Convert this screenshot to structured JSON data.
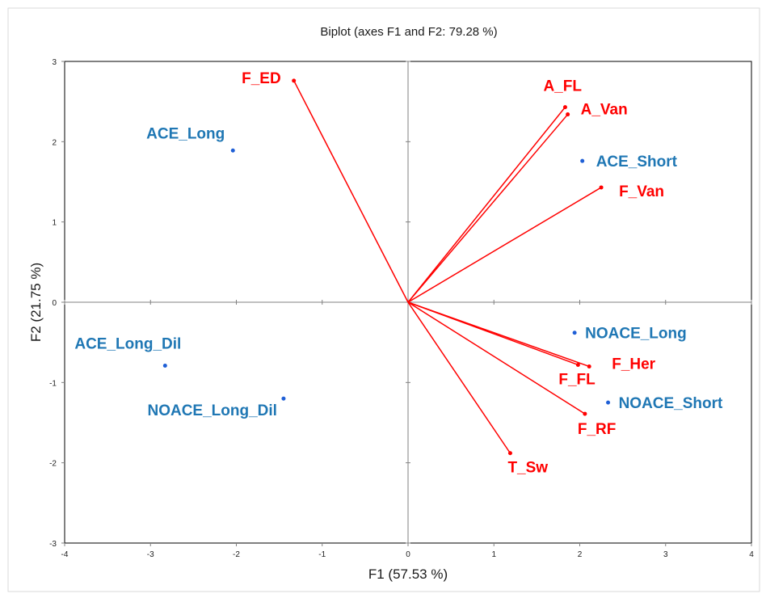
{
  "chart_data": {
    "type": "scatter",
    "title": "Biplot (axes F1 and F2: 79.28 %)",
    "xlabel": "F1 (57.53 %)",
    "ylabel": "F2 (21.75 %)",
    "xlim": [
      -4,
      4
    ],
    "ylim": [
      -3,
      3
    ],
    "xticks": [
      "-4",
      "-3",
      "-2",
      "-1",
      "0",
      "1",
      "2",
      "3",
      "4"
    ],
    "yticks": [
      "-3",
      "-2",
      "-1",
      "0",
      "1",
      "2",
      "3"
    ],
    "grid": false,
    "variables": [
      {
        "name": "F_ED",
        "x": -1.33,
        "y": 2.76
      },
      {
        "name": "A_FL",
        "x": 1.83,
        "y": 2.43
      },
      {
        "name": "A_Van",
        "x": 1.86,
        "y": 2.34
      },
      {
        "name": "F_Van",
        "x": 2.25,
        "y": 1.43
      },
      {
        "name": "F_Her",
        "x": 2.11,
        "y": -0.8
      },
      {
        "name": "F_FL",
        "x": 1.98,
        "y": -0.78
      },
      {
        "name": "F_RF",
        "x": 2.06,
        "y": -1.39
      },
      {
        "name": "T_Sw",
        "x": 1.19,
        "y": -1.88
      }
    ],
    "observations": [
      {
        "name": "ACE_Long",
        "x": -2.04,
        "y": 1.89
      },
      {
        "name": "ACE_Short",
        "x": 2.03,
        "y": 1.76
      },
      {
        "name": "ACE_Long_Dil",
        "x": -2.83,
        "y": -0.79
      },
      {
        "name": "NOACE_Long_Dil",
        "x": -1.45,
        "y": -1.2
      },
      {
        "name": "NOACE_Long",
        "x": 1.94,
        "y": -0.38
      },
      {
        "name": "NOACE_Short",
        "x": 2.33,
        "y": -1.25
      }
    ],
    "colors": {
      "variables": "#ff0000",
      "observations": "#1f77b4"
    }
  }
}
